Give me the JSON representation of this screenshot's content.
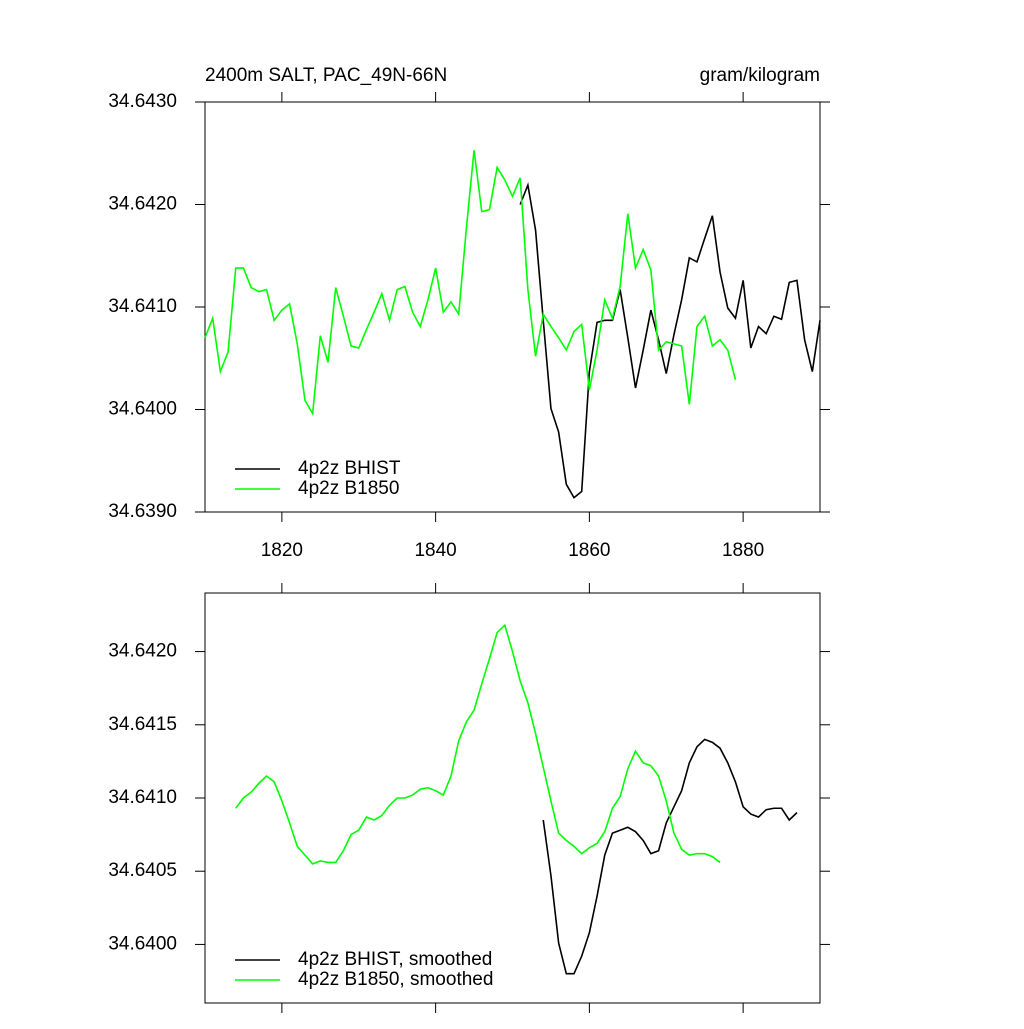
{
  "chart_data": [
    {
      "type": "line",
      "title": "2400m SALT, PAC_49N-66N",
      "units": "gram/kilogram",
      "x": [
        1810,
        1811,
        1812,
        1813,
        1814,
        1815,
        1816,
        1817,
        1818,
        1819,
        1820,
        1821,
        1822,
        1823,
        1824,
        1825,
        1826,
        1827,
        1828,
        1829,
        1830,
        1831,
        1832,
        1833,
        1834,
        1835,
        1836,
        1837,
        1838,
        1839,
        1840,
        1841,
        1842,
        1843,
        1844,
        1845,
        1846,
        1847,
        1848,
        1849,
        1850,
        1851,
        1852,
        1853,
        1854,
        1855,
        1856,
        1857,
        1858,
        1859,
        1860,
        1861,
        1862,
        1863,
        1864,
        1865,
        1866,
        1867,
        1868,
        1869,
        1870,
        1871,
        1872,
        1873,
        1874,
        1875,
        1876,
        1877,
        1878,
        1879,
        1880,
        1881,
        1882,
        1883,
        1884,
        1885,
        1886,
        1887,
        1888,
        1889,
        1890
      ],
      "series": [
        {
          "name": "4p2z BHIST",
          "color": "#000000",
          "values": [
            null,
            null,
            null,
            null,
            null,
            null,
            null,
            null,
            null,
            null,
            null,
            null,
            null,
            null,
            null,
            null,
            null,
            null,
            null,
            null,
            null,
            null,
            null,
            null,
            null,
            null,
            null,
            null,
            null,
            null,
            null,
            null,
            null,
            null,
            null,
            null,
            null,
            null,
            null,
            null,
            null,
            34.642,
            34.64219,
            34.64175,
            34.64087,
            34.64001,
            34.63978,
            34.63927,
            34.63914,
            34.6392,
            34.64037,
            34.64085,
            34.64087,
            34.64087,
            34.64117,
            34.6407,
            34.64021,
            34.64058,
            34.64097,
            34.64068,
            34.64035,
            34.64073,
            34.64107,
            34.64148,
            34.64144,
            34.64167,
            34.64189,
            34.64134,
            34.64099,
            34.64089,
            34.64126,
            34.6406,
            34.64081,
            34.64074,
            34.64091,
            34.64088,
            34.64124,
            34.64126,
            34.64068,
            34.64037,
            34.64087
          ]
        },
        {
          "name": "4p2z B1850",
          "color": "#00ff00",
          "values": [
            34.6407,
            34.64089,
            34.64037,
            34.64056,
            34.64138,
            34.64138,
            34.64119,
            34.64115,
            34.64117,
            34.64087,
            34.64097,
            34.64103,
            34.64064,
            34.64009,
            34.63996,
            34.64072,
            34.64046,
            34.64119,
            34.64091,
            34.64062,
            34.6406,
            34.64078,
            34.64095,
            34.64113,
            34.64087,
            34.64117,
            34.6412,
            34.64095,
            34.64081,
            34.64107,
            34.64138,
            34.64095,
            34.64105,
            34.64093,
            34.64177,
            34.64253,
            34.64193,
            34.64195,
            34.64236,
            34.64224,
            34.64208,
            34.64226,
            34.64117,
            34.64052,
            34.64093,
            34.64081,
            34.6407,
            34.64058,
            34.64076,
            34.64083,
            34.64019,
            34.64058,
            34.64107,
            34.64089,
            34.6412,
            34.64191,
            34.64138,
            34.64156,
            34.64136,
            34.64058,
            34.64066,
            34.64064,
            34.64062,
            34.64005,
            34.64081,
            34.64091,
            34.64062,
            34.64068,
            34.64058,
            34.64029,
            null,
            null,
            null,
            null,
            null,
            null,
            null,
            null,
            null,
            null,
            null
          ]
        }
      ],
      "xlim": [
        1810,
        1890
      ],
      "xticks": [
        1820,
        1840,
        1860,
        1880
      ],
      "ylim": [
        34.639,
        34.643
      ],
      "yticks": [
        {
          "value": 34.639,
          "label": "34.6390"
        },
        {
          "value": 34.64,
          "label": "34.6400"
        },
        {
          "value": 34.641,
          "label": "34.6410"
        },
        {
          "value": 34.642,
          "label": "34.6420"
        },
        {
          "value": 34.643,
          "label": "34.6430"
        }
      ],
      "legend": "lower left"
    },
    {
      "type": "line",
      "x": [
        1814,
        1815,
        1816,
        1817,
        1818,
        1819,
        1820,
        1821,
        1822,
        1823,
        1824,
        1825,
        1826,
        1827,
        1828,
        1829,
        1830,
        1831,
        1832,
        1833,
        1834,
        1835,
        1836,
        1837,
        1838,
        1839,
        1840,
        1841,
        1842,
        1843,
        1844,
        1845,
        1846,
        1847,
        1848,
        1849,
        1850,
        1851,
        1852,
        1853,
        1854,
        1855,
        1856,
        1857,
        1858,
        1859,
        1860,
        1861,
        1862,
        1863,
        1864,
        1865,
        1866,
        1867,
        1868,
        1869,
        1870,
        1871,
        1872,
        1873,
        1874,
        1875,
        1876,
        1877,
        1878,
        1879,
        1880,
        1881,
        1882,
        1883,
        1884,
        1885,
        1886,
        1887
      ],
      "series": [
        {
          "name": "4p2z BHIST, smoothed",
          "color": "#000000",
          "values": [
            null,
            null,
            null,
            null,
            null,
            null,
            null,
            null,
            null,
            null,
            null,
            null,
            null,
            null,
            null,
            null,
            null,
            null,
            null,
            null,
            null,
            null,
            null,
            null,
            null,
            null,
            null,
            null,
            null,
            null,
            null,
            null,
            null,
            null,
            null,
            null,
            null,
            null,
            null,
            null,
            34.64085,
            34.64047,
            34.64001,
            34.6398,
            34.6398,
            34.63992,
            34.64008,
            34.64033,
            34.64061,
            34.64076,
            34.64078,
            34.6408,
            34.64077,
            34.64071,
            34.64062,
            34.64064,
            34.64083,
            34.64094,
            34.64105,
            34.64124,
            34.64135,
            34.6414,
            34.64138,
            34.64134,
            34.64124,
            34.64111,
            34.64094,
            34.64089,
            34.64087,
            34.64092,
            34.64093,
            34.64093,
            34.64085,
            34.6409
          ]
        },
        {
          "name": "4p2z B1850, smoothed",
          "color": "#00ff00",
          "values": [
            34.64093,
            34.641,
            34.64104,
            34.6411,
            34.64115,
            34.64111,
            34.64098,
            34.64083,
            34.64067,
            34.64061,
            34.64055,
            34.64057,
            34.64056,
            34.64056,
            34.64064,
            34.64075,
            34.64078,
            34.64087,
            34.64085,
            34.64088,
            34.64095,
            34.641,
            34.641,
            34.64102,
            34.64106,
            34.64107,
            34.64105,
            34.64102,
            34.64115,
            34.64139,
            34.64152,
            34.6416,
            34.64178,
            34.64195,
            34.64213,
            34.64218,
            34.642,
            34.6418,
            34.64165,
            34.64144,
            34.64121,
            34.64098,
            34.64076,
            34.64071,
            34.64067,
            34.64062,
            34.64066,
            34.64069,
            34.64077,
            34.64093,
            34.64101,
            34.6412,
            34.64132,
            34.64124,
            34.64122,
            34.64115,
            34.64098,
            34.64076,
            34.64065,
            34.64061,
            34.64062,
            34.64062,
            34.6406,
            34.64056,
            null,
            null,
            null,
            null,
            null,
            null,
            null,
            null,
            null,
            null
          ]
        }
      ],
      "xlim": [
        1810,
        1890
      ],
      "ylim": [
        34.6396,
        34.6424
      ],
      "yticks": [
        {
          "value": 34.64,
          "label": "34.6400"
        },
        34.6405,
        {
          "value": 34.641,
          "label": "34.6410"
        },
        34.6415,
        {
          "value": 34.642,
          "label": "34.6420"
        }
      ],
      "legend": "lower left"
    }
  ]
}
